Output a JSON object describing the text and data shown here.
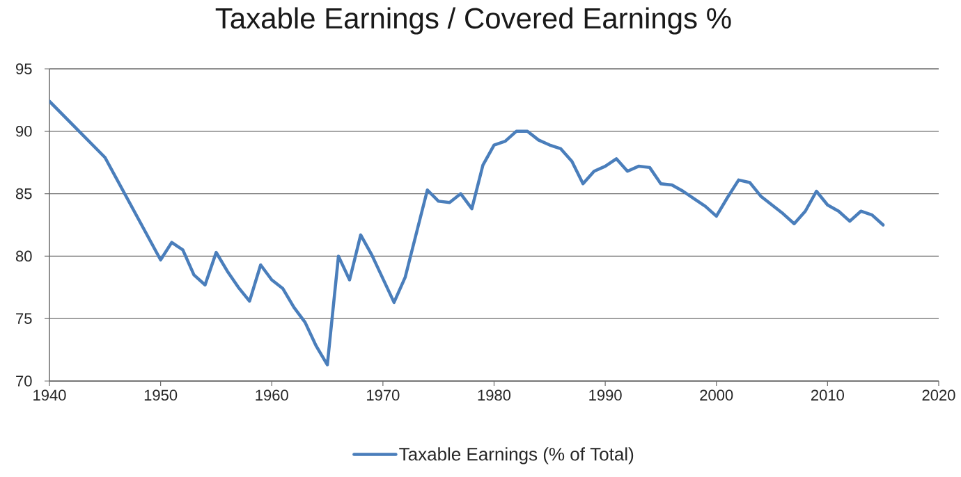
{
  "chart_data": {
    "type": "line",
    "title": "Taxable Earnings / Covered Earnings %",
    "x": [
      1940,
      1945,
      1950,
      1951,
      1952,
      1953,
      1954,
      1955,
      1956,
      1957,
      1958,
      1959,
      1960,
      1961,
      1962,
      1963,
      1964,
      1965,
      1966,
      1967,
      1968,
      1969,
      1970,
      1971,
      1972,
      1973,
      1974,
      1975,
      1976,
      1977,
      1978,
      1979,
      1980,
      1981,
      1982,
      1983,
      1984,
      1985,
      1986,
      1987,
      1988,
      1989,
      1990,
      1991,
      1992,
      1993,
      1994,
      1995,
      1996,
      1997,
      1998,
      1999,
      2000,
      2001,
      2002,
      2003,
      2004,
      2005,
      2006,
      2007,
      2008,
      2009,
      2010,
      2011,
      2012,
      2013,
      2014,
      2015
    ],
    "series": [
      {
        "name": "Taxable Earnings (% of Total)",
        "color": "#4a7ebb",
        "values": [
          92.4,
          87.9,
          79.7,
          81.1,
          80.5,
          78.5,
          77.7,
          80.3,
          78.8,
          77.5,
          76.4,
          79.3,
          78.1,
          77.4,
          75.9,
          74.7,
          72.8,
          71.3,
          80.0,
          78.1,
          81.7,
          80.1,
          78.2,
          76.3,
          78.3,
          81.8,
          85.3,
          84.4,
          84.3,
          85.0,
          83.8,
          87.3,
          88.9,
          89.2,
          90.0,
          90.0,
          89.3,
          88.9,
          88.6,
          87.6,
          85.8,
          86.8,
          87.2,
          87.8,
          86.8,
          87.2,
          87.1,
          85.8,
          85.7,
          85.2,
          84.6,
          84.0,
          83.2,
          84.7,
          86.1,
          85.9,
          84.8,
          84.1,
          83.4,
          82.6,
          83.6,
          85.2,
          84.1,
          83.6,
          82.8,
          83.6,
          83.3,
          82.5
        ]
      }
    ],
    "xlim": [
      1940,
      2020
    ],
    "xticks": [
      1940,
      1950,
      1960,
      1970,
      1980,
      1990,
      2000,
      2010,
      2020
    ],
    "ylim": [
      70,
      95
    ],
    "yticks": [
      70,
      75,
      80,
      85,
      90,
      95
    ],
    "grid": "y",
    "legend": "bottom",
    "marker": "none",
    "line_style": "solid"
  }
}
